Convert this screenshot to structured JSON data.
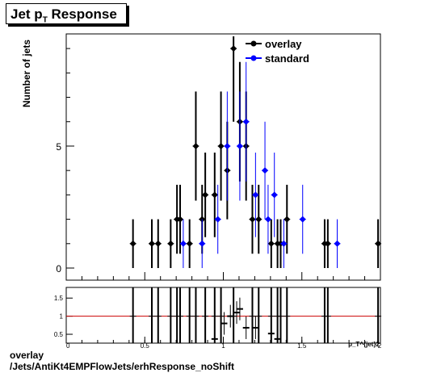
{
  "header": {
    "title_main": "Jet p",
    "title_sub": "T",
    "title_rest": " Response"
  },
  "footer": {
    "line1": "overlay",
    "line2": "/Jets/AntiKt4EMPFlowJets/erhResponse_noShift"
  },
  "colors": {
    "overlay": "#000000",
    "standard": "#0000ff",
    "ratio_line": "#cc0000"
  },
  "chart_data": [
    {
      "type": "scatter",
      "ylabel": "Number of jets",
      "xlim": [
        0,
        2
      ],
      "ylim": [
        0,
        9.5
      ],
      "yticks": [
        0,
        5
      ],
      "legend_position": "top-right",
      "series": [
        {
          "name": "overlay",
          "x": [
            0.425,
            0.545,
            0.585,
            0.665,
            0.705,
            0.725,
            0.785,
            0.825,
            0.865,
            0.885,
            0.945,
            0.985,
            1.025,
            1.065,
            1.105,
            1.145,
            1.185,
            1.225,
            1.305,
            1.345,
            1.365,
            1.405,
            1.645,
            1.665,
            1.985
          ],
          "y": [
            1,
            1,
            1,
            1,
            2,
            2,
            1,
            5,
            2,
            3,
            3,
            5,
            4,
            9,
            6,
            5,
            2,
            2,
            1,
            1,
            1,
            2,
            1,
            1,
            1
          ]
        },
        {
          "name": "standard",
          "x": [
            0.745,
            0.865,
            0.965,
            1.025,
            1.105,
            1.145,
            1.205,
            1.265,
            1.285,
            1.325,
            1.385,
            1.505,
            1.725
          ],
          "y": [
            1,
            1,
            2,
            5,
            5,
            6,
            3,
            4,
            2,
            3,
            1,
            2,
            1
          ]
        }
      ]
    },
    {
      "type": "scatter",
      "xlabel": "p_T^{jet}2",
      "xlim": [
        0,
        2
      ],
      "ylim": [
        0.3,
        1.75
      ],
      "yticks": [
        0.5,
        1,
        1.5
      ],
      "ytick_labels": [
        "0.5",
        "1",
        "1.5"
      ],
      "xticks": [
        0,
        0.5,
        1,
        1.5,
        2
      ],
      "xtick_labels": [
        "0",
        "0.5",
        "1",
        "1.5",
        "2"
      ],
      "reference_line": 1,
      "points": {
        "x": [
          0.945,
          1.005,
          1.045,
          1.085,
          1.105,
          1.145,
          1.205,
          1.305,
          1.345
        ],
        "y": [
          0.37,
          0.8,
          1.0,
          1.1,
          1.2,
          0.68,
          0.68,
          0.52,
          0.37
        ]
      }
    }
  ]
}
